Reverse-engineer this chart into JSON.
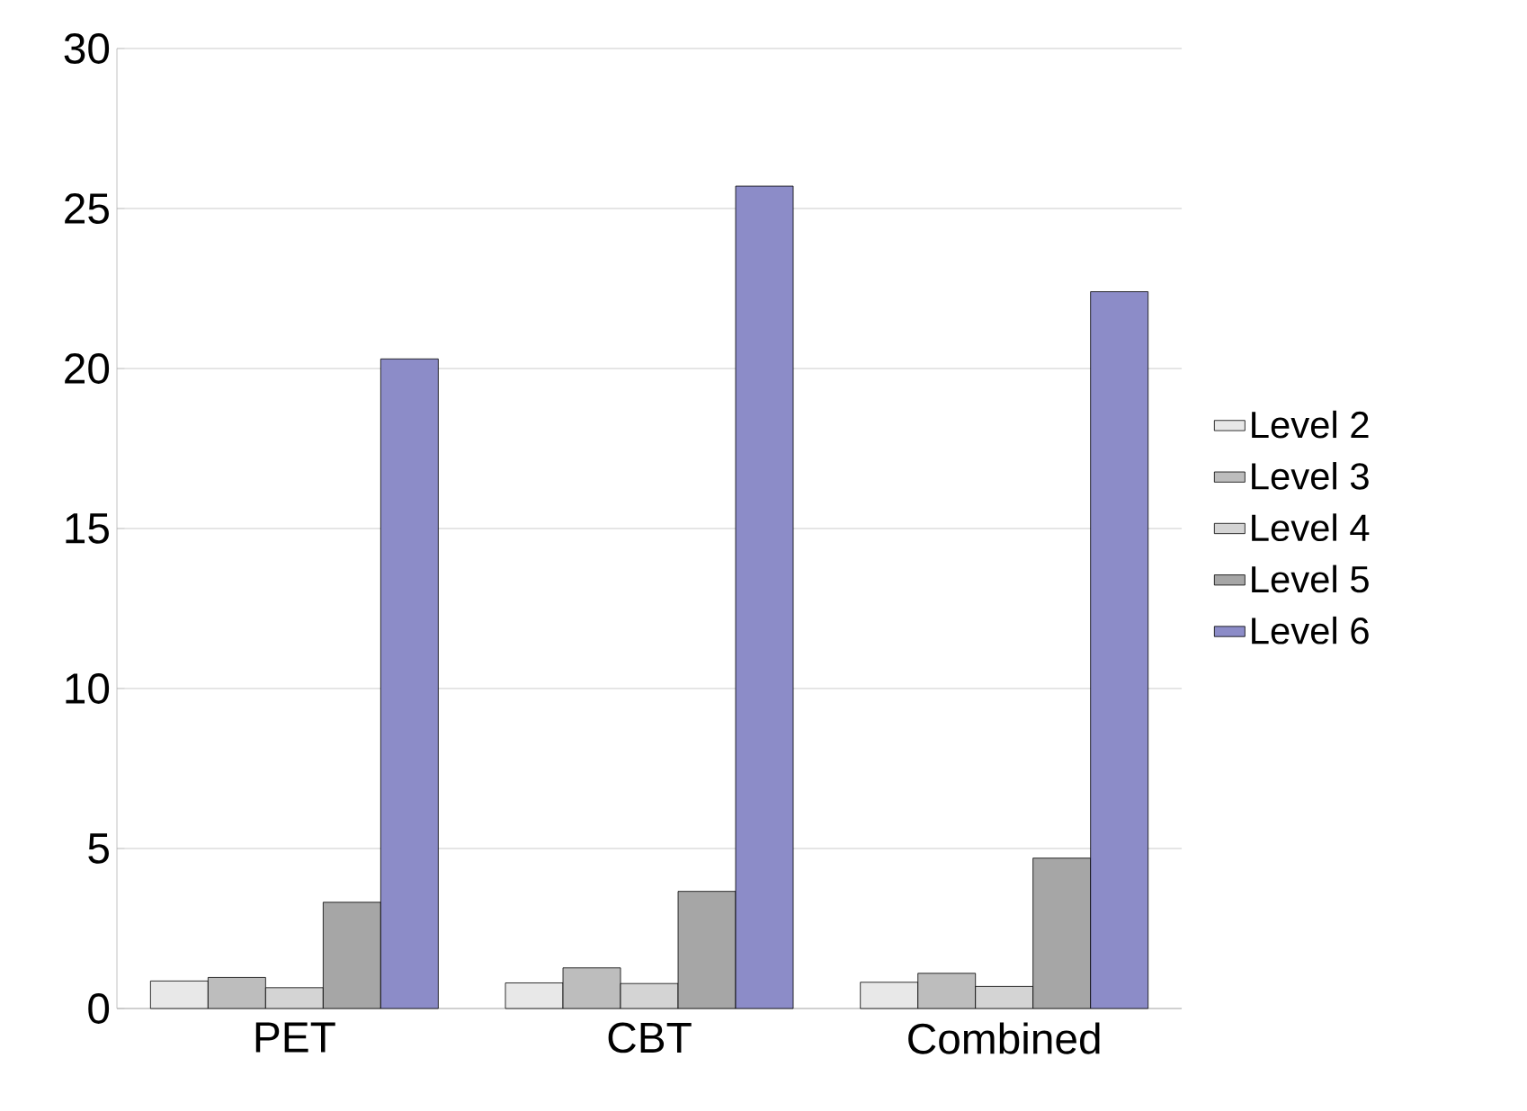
{
  "chart_data": {
    "type": "bar",
    "categories": [
      "PET",
      "CBT",
      "Combined"
    ],
    "series": [
      {
        "name": "Level 2",
        "color": "#e8e8e8",
        "values": [
          0.86,
          0.8,
          0.82
        ]
      },
      {
        "name": "Level 3",
        "color": "#bdbdbd",
        "values": [
          0.97,
          1.27,
          1.1
        ]
      },
      {
        "name": "Level 4",
        "color": "#d4d4d4",
        "values": [
          0.65,
          0.78,
          0.69
        ]
      },
      {
        "name": "Level 5",
        "color": "#a6a6a6",
        "values": [
          3.32,
          3.66,
          4.7
        ]
      },
      {
        "name": "Level 6",
        "color": "#8c8cc8",
        "values": [
          20.3,
          25.7,
          22.4
        ]
      }
    ],
    "ylim": [
      0,
      30
    ],
    "yticks": [
      0,
      5,
      10,
      15,
      20,
      25,
      30
    ],
    "grid": "y",
    "legend": "right"
  }
}
